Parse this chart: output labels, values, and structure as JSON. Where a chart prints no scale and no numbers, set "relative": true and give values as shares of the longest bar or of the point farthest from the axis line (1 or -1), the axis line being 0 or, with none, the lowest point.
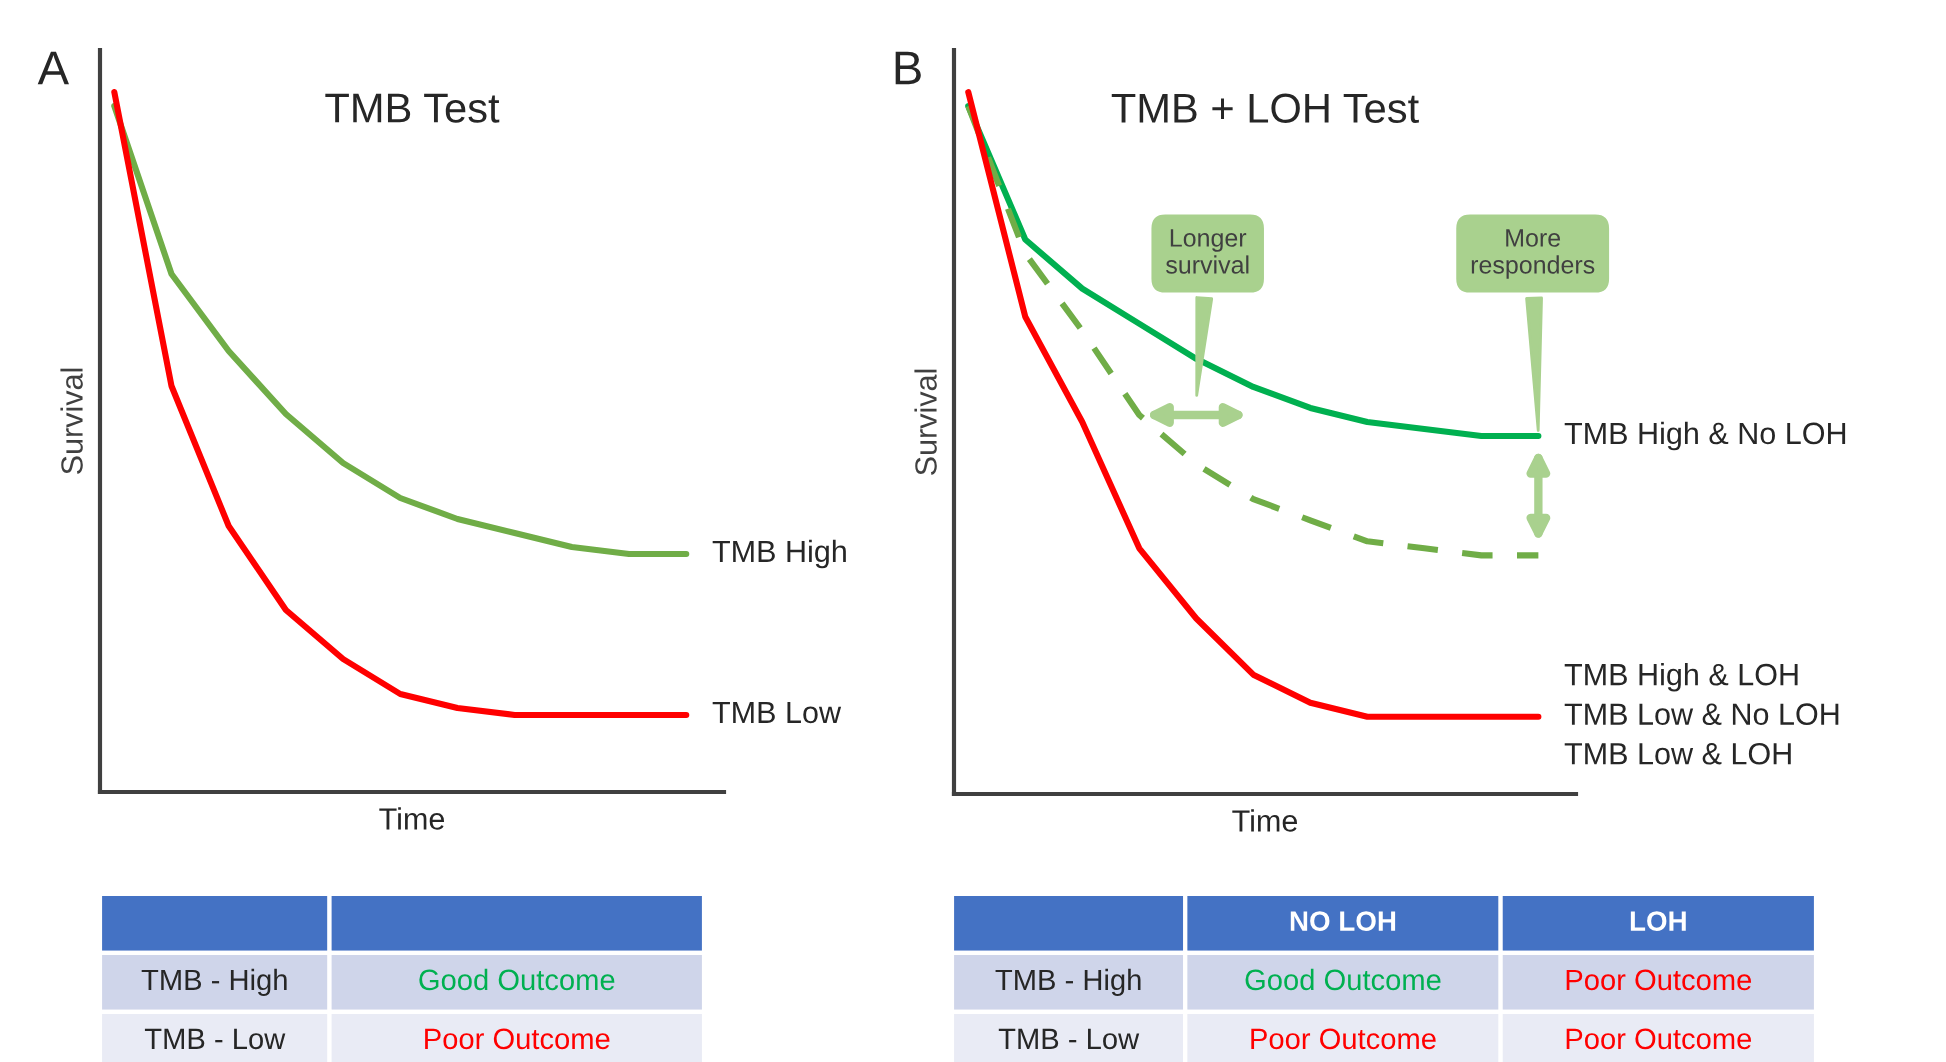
{
  "chart_data": [
    {
      "type": "line",
      "title": "TMB Test",
      "xlabel": "Time",
      "ylabel": "Survival",
      "relative": true,
      "legend": false,
      "annotations": [
        "A"
      ],
      "categories": [
        null,
        null,
        null,
        null,
        null,
        null,
        null,
        null,
        null,
        null,
        null
      ],
      "series": [
        {
          "name": "TMB High",
          "color": "#70ad47",
          "line_style": "solid",
          "values": [
            0.98,
            0.74,
            0.63,
            0.54,
            0.47,
            0.42,
            0.39,
            0.37,
            0.35,
            0.34,
            0.34
          ]
        },
        {
          "name": "TMB Low",
          "color": "#ff0000",
          "line_style": "solid",
          "values": [
            1.0,
            0.58,
            0.38,
            0.26,
            0.19,
            0.14,
            0.12,
            0.11,
            0.11,
            0.11,
            0.11
          ]
        }
      ]
    },
    {
      "type": "line",
      "title": "TMB + LOH Test",
      "xlabel": "Time",
      "ylabel": "Survival",
      "relative": true,
      "legend": false,
      "annotations": [
        "B",
        "Longer survival",
        "More responders"
      ],
      "categories": [
        null,
        null,
        null,
        null,
        null,
        null,
        null,
        null,
        null,
        null,
        null
      ],
      "series": [
        {
          "name": "TMB High & No LOH",
          "color": "#00b050",
          "line_style": "solid",
          "values": [
            0.98,
            0.79,
            0.72,
            0.67,
            0.62,
            0.58,
            0.55,
            0.53,
            0.52,
            0.51,
            0.51
          ]
        },
        {
          "color": "#70ad47",
          "line_style": "dashed",
          "values": [
            0.98,
            0.77,
            0.66,
            0.54,
            0.47,
            0.42,
            0.39,
            0.36,
            0.35,
            0.34,
            0.34
          ]
        },
        {
          "name": "TMB High & LOH\nTMB Low & No LOH\nTMB Low & LOH",
          "color": "#ff0000",
          "line_style": "solid",
          "values": [
            1.0,
            0.68,
            0.53,
            0.35,
            0.25,
            0.17,
            0.13,
            0.11,
            0.11,
            0.11,
            0.11
          ]
        }
      ]
    },
    {
      "type": "other",
      "categories": [
        null
      ],
      "y_categories": [
        "TMB - High",
        "TMB - Low"
      ],
      "cell_labels": [
        [
          "Good Outcome"
        ],
        [
          "Poor Outcome"
        ]
      ],
      "colors": [
        [
          "#00b050"
        ],
        [
          "#ff0000"
        ]
      ]
    },
    {
      "type": "other",
      "categories": [
        "NO LOH",
        "LOH"
      ],
      "y_categories": [
        "TMB - High",
        "TMB - Low"
      ],
      "cell_labels": [
        [
          "Good Outcome",
          "Poor Outcome"
        ],
        [
          "Poor Outcome",
          "Poor Outcome"
        ]
      ],
      "colors": [
        [
          "#00b050",
          "#ff0000"
        ],
        [
          "#ff0000",
          "#ff0000"
        ]
      ]
    }
  ]
}
